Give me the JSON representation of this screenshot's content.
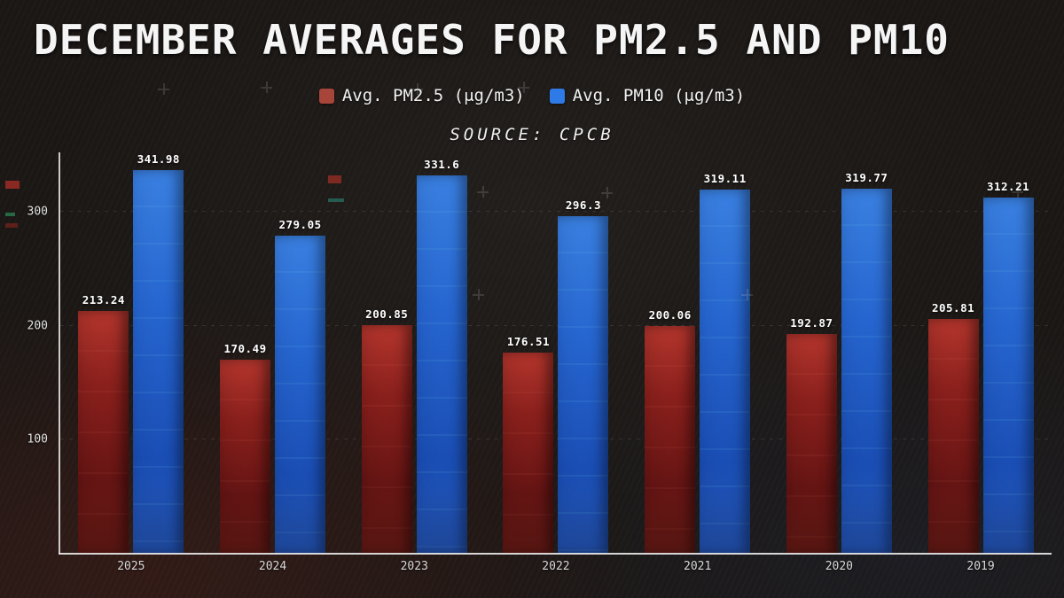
{
  "chart_data": {
    "type": "bar",
    "title": "DECEMBER AVERAGES FOR PM2.5 AND PM10",
    "subtitle": "SOURCE: CPCB",
    "categories": [
      "2025",
      "2024",
      "2023",
      "2022",
      "2021",
      "2020",
      "2019"
    ],
    "series": [
      {
        "name": "Avg. PM2.5 (μg/m3)",
        "color": "#a8453a",
        "values": [
          213.24,
          170.49,
          200.85,
          176.51,
          200.06,
          192.87,
          205.81
        ]
      },
      {
        "name": "Avg. PM10 (μg/m3)",
        "color": "#2e7ae6",
        "values": [
          341.98,
          279.05,
          331.6,
          296.3,
          319.11,
          319.77,
          312.21
        ]
      }
    ],
    "ylim": [
      0,
      352
    ],
    "yticks": [
      100,
      200,
      300
    ],
    "legend_position": "top",
    "grid": "faint-dotted-horizontal",
    "background": "#1b1715"
  }
}
